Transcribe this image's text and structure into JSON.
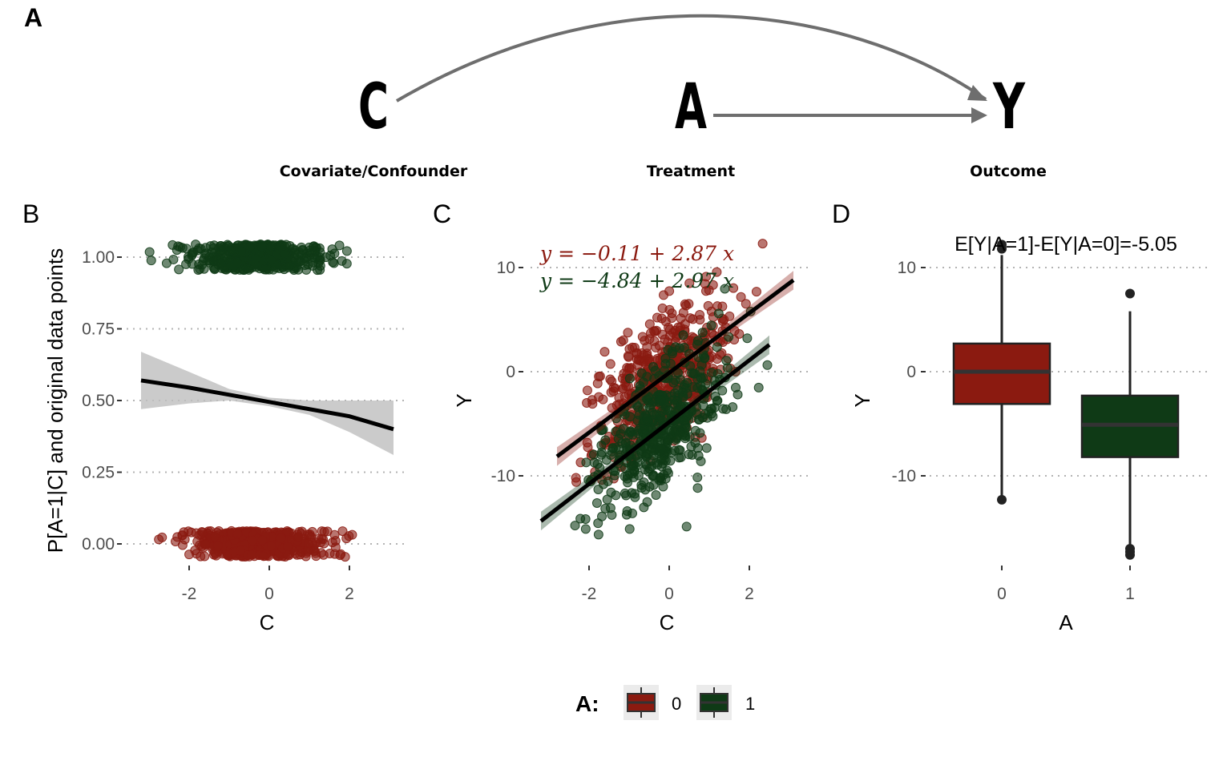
{
  "panel_labels": {
    "a": "A",
    "b": "B",
    "c": "C",
    "d": "D"
  },
  "dag": {
    "nodes": [
      {
        "id": "C",
        "letter": "C",
        "label": "Covariate/Confounder"
      },
      {
        "id": "A",
        "letter": "A",
        "label": "Treatment"
      },
      {
        "id": "Y",
        "letter": "Y",
        "label": "Outcome"
      }
    ],
    "edges": [
      [
        "C",
        "Y"
      ],
      [
        "A",
        "Y"
      ]
    ]
  },
  "colors": {
    "group0": "#8B1A10",
    "group1": "#0F3A16",
    "ribbon": "#BEBEBE",
    "arrow": "#6E6E6E"
  },
  "chart_data": [
    {
      "panel": "B",
      "type": "scatter",
      "xlabel": "C",
      "ylabel": "P[A=1|C] and original data points",
      "xlim": [
        -3.2,
        3.1
      ],
      "ylim": [
        -0.04,
        1.04
      ],
      "x_ticks": [
        -2,
        0,
        2
      ],
      "x_tick_labels": [
        "-2",
        "0",
        "2"
      ],
      "y_ticks": [
        0,
        0.25,
        0.5,
        0.75,
        1
      ],
      "y_tick_labels": [
        "0.00",
        "0.25",
        "0.50",
        "0.75",
        "1.00"
      ],
      "grid": "horizontal dotted",
      "series": [
        {
          "name": "0",
          "y_level": 0.0,
          "n_points": 520,
          "x_mean": -0.2,
          "x_sd": 0.85
        },
        {
          "name": "1",
          "y_level": 1.0,
          "n_points": 480,
          "x_mean": -0.3,
          "x_sd": 0.8
        }
      ],
      "fit": {
        "method": "logistic",
        "x": [
          -3.2,
          -2,
          -1,
          0,
          1,
          2,
          3.1
        ],
        "y": [
          0.57,
          0.545,
          0.52,
          0.495,
          0.47,
          0.445,
          0.4
        ],
        "ci_low": [
          0.47,
          0.49,
          0.5,
          0.48,
          0.45,
          0.39,
          0.31
        ],
        "ci_high": [
          0.67,
          0.6,
          0.54,
          0.51,
          0.5,
          0.5,
          0.5
        ]
      }
    },
    {
      "panel": "C",
      "type": "scatter",
      "xlabel": "C",
      "ylabel": "Y",
      "xlim": [
        -3.2,
        3.1
      ],
      "ylim": [
        -18,
        12.5
      ],
      "x_ticks": [
        -2,
        0,
        2
      ],
      "x_tick_labels": [
        "-2",
        "0",
        "2"
      ],
      "y_ticks": [
        -10,
        0,
        10
      ],
      "y_tick_labels": [
        "-10",
        "0",
        "10"
      ],
      "grid": "horizontal dotted",
      "series": [
        {
          "name": "0",
          "n_points": 520,
          "intercept": -0.11,
          "slope": 2.87,
          "line_x": [
            -2.8,
            3.1
          ],
          "resid_sd": 3.0
        },
        {
          "name": "1",
          "n_points": 480,
          "intercept": -4.84,
          "slope": 2.97,
          "line_x": [
            -3.2,
            2.5
          ],
          "resid_sd": 3.0
        }
      ],
      "equations": [
        "y = −0.11 + 2.87 x",
        "y = −4.84 + 2.97 x"
      ]
    },
    {
      "panel": "D",
      "type": "box",
      "xlabel": "A",
      "ylabel": "Y",
      "ylim": [
        -18,
        12.5
      ],
      "categories": [
        "0",
        "1"
      ],
      "y_ticks": [
        -10,
        0,
        10
      ],
      "y_tick_labels": [
        "-10",
        "0",
        "10"
      ],
      "grid": "horizontal dotted",
      "annotation": "E[Y|A=1]-E[Y|A=0]=-5.05",
      "boxes": [
        {
          "category": "0",
          "q1": -3.1,
          "median": 0.0,
          "q3": 2.7,
          "whisker_low": -12.0,
          "whisker_high": 11.2,
          "outliers": [
            -12.3,
            11.8,
            12.2
          ]
        },
        {
          "category": "1",
          "q1": -8.2,
          "median": -5.1,
          "q3": -2.3,
          "whisker_low": -16.6,
          "whisker_high": 5.8,
          "outliers": [
            7.5,
            -17.0,
            -17.3,
            -17.6
          ]
        }
      ]
    }
  ],
  "legend": {
    "title": "A:",
    "items": [
      {
        "label": "0"
      },
      {
        "label": "1"
      }
    ]
  }
}
